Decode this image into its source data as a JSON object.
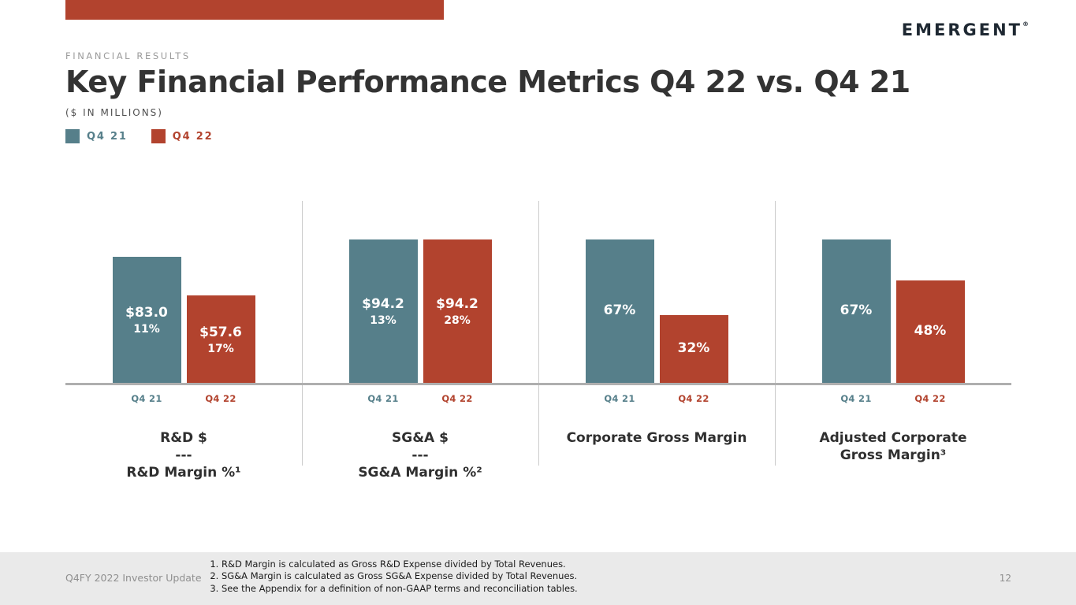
{
  "slide": {
    "logo": "EMERGENT",
    "logo_mark": "®",
    "eyebrow": "FINANCIAL RESULTS",
    "title": "Key Financial Performance Metrics Q4 22 vs. Q4 21",
    "subtitle": "($ IN MILLIONS)",
    "footer": {
      "left": "Q4FY 2022 Investor Update",
      "page": "12",
      "footnotes": [
        "R&D Margin is calculated as Gross R&D Expense divided by Total Revenues.",
        "SG&A Margin is calculated as Gross SG&A Expense divided by Total Revenues.",
        "See the Appendix for a definition of non-GAAP terms and reconciliation tables."
      ]
    }
  },
  "legend": [
    {
      "label": "Q4 21",
      "color": "#567F8A"
    },
    {
      "label": "Q4 22",
      "color": "#B2432E"
    }
  ],
  "chart_data": {
    "type": "bar",
    "series": [
      "Q4 21",
      "Q4 22"
    ],
    "bar_colors": [
      "#567F8A",
      "#B2432E"
    ],
    "grid": false,
    "legend_position": "top-left",
    "groups": [
      {
        "label_lines": [
          "R&D $",
          "---",
          "R&D Margin %¹"
        ],
        "bars": [
          {
            "series": "Q4 21",
            "value": 83.0,
            "unit": "dollars_millions",
            "margin_pct": 11,
            "lines": [
              "$83.0",
              "11%"
            ]
          },
          {
            "series": "Q4 22",
            "value": 57.6,
            "unit": "dollars_millions",
            "margin_pct": 17,
            "lines": [
              "$57.6",
              "17%"
            ]
          }
        ]
      },
      {
        "label_lines": [
          "SG&A $",
          "---",
          "SG&A Margin %²"
        ],
        "bars": [
          {
            "series": "Q4 21",
            "value": 94.2,
            "unit": "dollars_millions",
            "margin_pct": 13,
            "lines": [
              "$94.2",
              "13%"
            ]
          },
          {
            "series": "Q4 22",
            "value": 94.2,
            "unit": "dollars_millions",
            "margin_pct": 28,
            "lines": [
              "$94.2",
              "28%"
            ]
          }
        ]
      },
      {
        "label_lines": [
          "Corporate Gross Margin"
        ],
        "bars": [
          {
            "series": "Q4 21",
            "value": 67,
            "unit": "percent",
            "lines": [
              "67%"
            ]
          },
          {
            "series": "Q4 22",
            "value": 32,
            "unit": "percent",
            "lines": [
              "32%"
            ]
          }
        ]
      },
      {
        "label_lines": [
          "Adjusted Corporate",
          "Gross Margin³"
        ],
        "bars": [
          {
            "series": "Q4 21",
            "value": 67,
            "unit": "percent",
            "lines": [
              "67%"
            ]
          },
          {
            "series": "Q4 22",
            "value": 48,
            "unit": "percent",
            "lines": [
              "48%"
            ]
          }
        ]
      }
    ]
  }
}
